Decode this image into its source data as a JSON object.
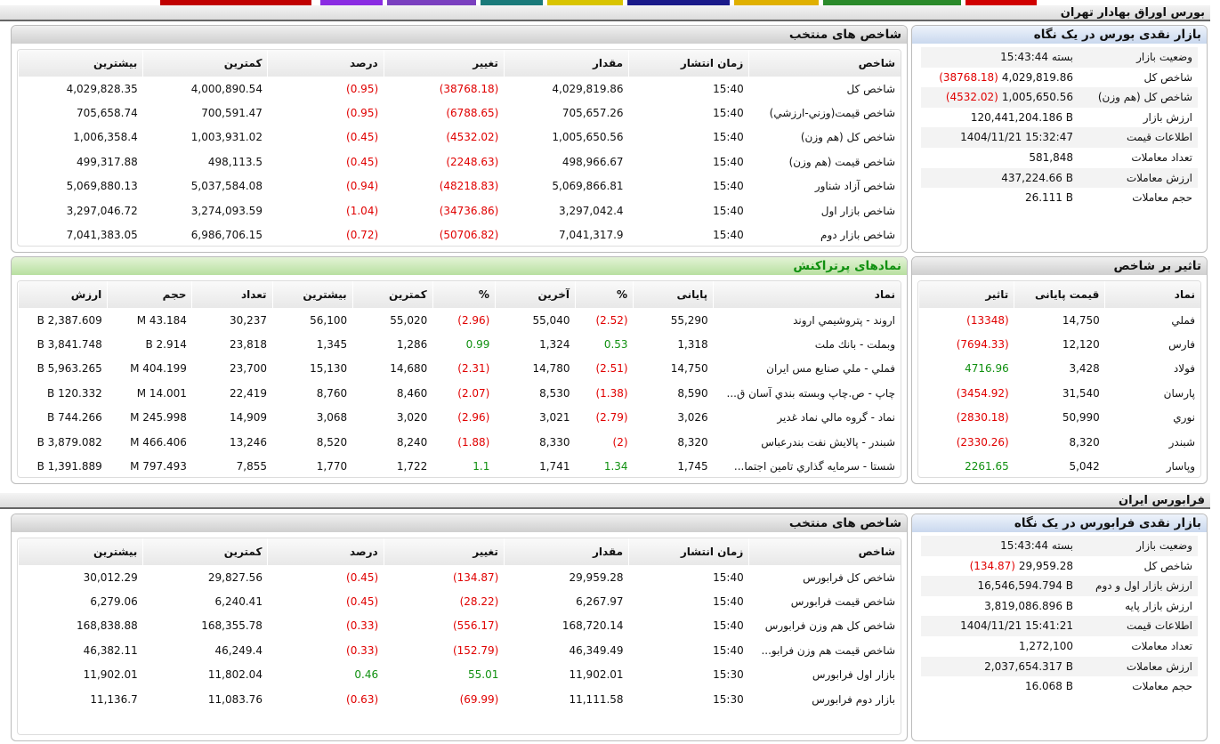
{
  "bourse": {
    "title": "بورس اوراق بهادار تهران",
    "indices": {
      "title": "شاخص های منتخب",
      "columns": [
        "شاخص",
        "زمان انتشار",
        "مقدار",
        "تغییر",
        "درصد",
        "کمترین",
        "بیشترین"
      ],
      "rows": [
        [
          "شاخص کل",
          "15:40",
          "4,029,819.86",
          "(38768.18)",
          "(0.95)",
          "4,000,890.54",
          "4,029,828.35"
        ],
        [
          "شاخص قیمت(وزني-ارزشي)",
          "15:40",
          "705,657.26",
          "(6788.65)",
          "(0.95)",
          "700,591.47",
          "705,658.74"
        ],
        [
          "شاخص کل (هم وزن)",
          "15:40",
          "1,005,650.56",
          "(4532.02)",
          "(0.45)",
          "1,003,931.02",
          "1,006,358.4"
        ],
        [
          "شاخص قیمت (هم وزن)",
          "15:40",
          "498,966.67",
          "(2248.63)",
          "(0.45)",
          "498,113.5",
          "499,317.88"
        ],
        [
          "شاخص آزاد شناور",
          "15:40",
          "5,069,866.81",
          "(48218.83)",
          "(0.94)",
          "5,037,584.08",
          "5,069,880.13"
        ],
        [
          "شاخص بازار اول",
          "15:40",
          "3,297,042.4",
          "(34736.86)",
          "(1.04)",
          "3,274,093.59",
          "3,297,046.72"
        ],
        [
          "شاخص بازار دوم",
          "15:40",
          "7,041,317.9",
          "(50706.82)",
          "(0.72)",
          "6,986,706.15",
          "7,041,383.05"
        ]
      ]
    },
    "summary": {
      "title": "بازار نقدی بورس در یک نگاه",
      "rows": [
        {
          "label": "وضعیت بازار",
          "value": "بسته 15:43:44"
        },
        {
          "label": "شاخص کل",
          "value": "4,029,819.86",
          "change": "(38768.18)"
        },
        {
          "label": "شاخص کل (هم وزن)",
          "value": "1,005,650.56",
          "change": "(4532.02)"
        },
        {
          "label": "ارزش بازار",
          "value": "120,441,204.186 B"
        },
        {
          "label": "اطلاعات قیمت",
          "value": "1404/11/21 15:32:47"
        },
        {
          "label": "تعداد معاملات",
          "value": "581,848"
        },
        {
          "label": "ارزش معاملات",
          "value": "437,224.66 B"
        },
        {
          "label": "حجم معاملات",
          "value": "26.111 B"
        }
      ]
    },
    "active": {
      "title": "نمادهای پرتراکنش",
      "columns": [
        "نماد",
        "پایانی",
        "%",
        "آخرین",
        "%",
        "کمترین",
        "بیشترین",
        "تعداد",
        "حجم",
        "ارزش"
      ],
      "rows": [
        [
          "اروند - پتروشيمي اروند",
          "55,290",
          "(2.52)",
          "55,040",
          "(2.96)",
          "55,020",
          "56,100",
          "30,237",
          "43.184 M",
          "2,387.609 B"
        ],
        [
          "وبملت - بانك ملت",
          "1,318",
          "0.53",
          "1,324",
          "0.99",
          "1,286",
          "1,345",
          "23,818",
          "2.914 B",
          "3,841.748 B"
        ],
        [
          "فملي - ملي صنايع مس ايران",
          "14,750",
          "(2.51)",
          "14,780",
          "(2.31)",
          "14,680",
          "15,130",
          "23,700",
          "404.199 M",
          "5,963.265 B"
        ],
        [
          "چاپ - ص.چاپ وبسته بندي آسان ق...",
          "8,590",
          "(1.38)",
          "8,530",
          "(2.07)",
          "8,460",
          "8,760",
          "22,419",
          "14.001 M",
          "120.332 B"
        ],
        [
          "نماد - گروه مالي نماد غدير",
          "3,026",
          "(2.79)",
          "3,021",
          "(2.96)",
          "3,020",
          "3,068",
          "14,909",
          "245.998 M",
          "744.266 B"
        ],
        [
          "شبندر - پالايش نفت بندرعباس",
          "8,320",
          "(2)",
          "8,330",
          "(1.88)",
          "8,240",
          "8,520",
          "13,246",
          "466.406 M",
          "3,879.082 B"
        ],
        [
          "شستا - سرمايه گذاري تامين اجتما...",
          "1,745",
          "1.34",
          "1,741",
          "1.1",
          "1,722",
          "1,770",
          "7,855",
          "797.493 M",
          "1,391.889 B"
        ]
      ]
    },
    "impact": {
      "title": "تاثیر بر شاخص",
      "columns": [
        "نماد",
        "قیمت پایانی",
        "تاثیر"
      ],
      "rows": [
        [
          "فملي",
          "14,750",
          "(13348)"
        ],
        [
          "فارس",
          "12,120",
          "(7694.33)"
        ],
        [
          "فولاد",
          "3,428",
          "4716.96"
        ],
        [
          "پارسان",
          "31,540",
          "(3454.92)"
        ],
        [
          "نوري",
          "50,990",
          "(2830.18)"
        ],
        [
          "شبندر",
          "8,320",
          "(2330.26)"
        ],
        [
          "وپاسار",
          "5,042",
          "2261.65"
        ]
      ]
    }
  },
  "farabourse": {
    "title": "فرابورس ایران",
    "indices": {
      "title": "شاخص های منتخب",
      "columns": [
        "شاخص",
        "زمان انتشار",
        "مقدار",
        "تغییر",
        "درصد",
        "کمترین",
        "بیشترین"
      ],
      "rows": [
        [
          "شاخص کل فرابورس",
          "15:40",
          "29,959.28",
          "(134.87)",
          "(0.45)",
          "29,827.56",
          "30,012.29"
        ],
        [
          "شاخص قیمت فرابورس",
          "15:40",
          "6,267.97",
          "(28.22)",
          "(0.45)",
          "6,240.41",
          "6,279.06"
        ],
        [
          "شاخص کل هم وزن فرابورس",
          "15:40",
          "168,720.14",
          "(556.17)",
          "(0.33)",
          "168,355.78",
          "168,838.88"
        ],
        [
          "شاخص قیمت هم وزن فرابو...",
          "15:40",
          "46,349.49",
          "(152.79)",
          "(0.33)",
          "46,249.4",
          "46,382.11"
        ],
        [
          "بازار اول فرابورس",
          "15:30",
          "11,902.01",
          "55.01",
          "0.46",
          "11,802.04",
          "11,902.01"
        ],
        [
          "بازار دوم فرابورس",
          "15:30",
          "11,111.58",
          "(69.99)",
          "(0.63)",
          "11,083.76",
          "11,136.7"
        ]
      ]
    },
    "summary": {
      "title": "بازار نقدی فرابورس در یک نگاه",
      "rows": [
        {
          "label": "وضعیت بازار",
          "value": "بسته 15:43:44"
        },
        {
          "label": "شاخص کل",
          "value": "29,959.28",
          "change": "(134.87)"
        },
        {
          "label": "ارزش بازار اول و دوم",
          "value": "16,546,594.794 B"
        },
        {
          "label": "ارزش بازار پایه",
          "value": "3,819,086.896 B"
        },
        {
          "label": "اطلاعات قیمت",
          "value": "1404/11/21 15:41:21"
        },
        {
          "label": "تعداد معاملات",
          "value": "1,272,100"
        },
        {
          "label": "ارزش معاملات",
          "value": "2,037,654.317 B"
        },
        {
          "label": "حجم معاملات",
          "value": "16.068 B"
        }
      ]
    }
  }
}
